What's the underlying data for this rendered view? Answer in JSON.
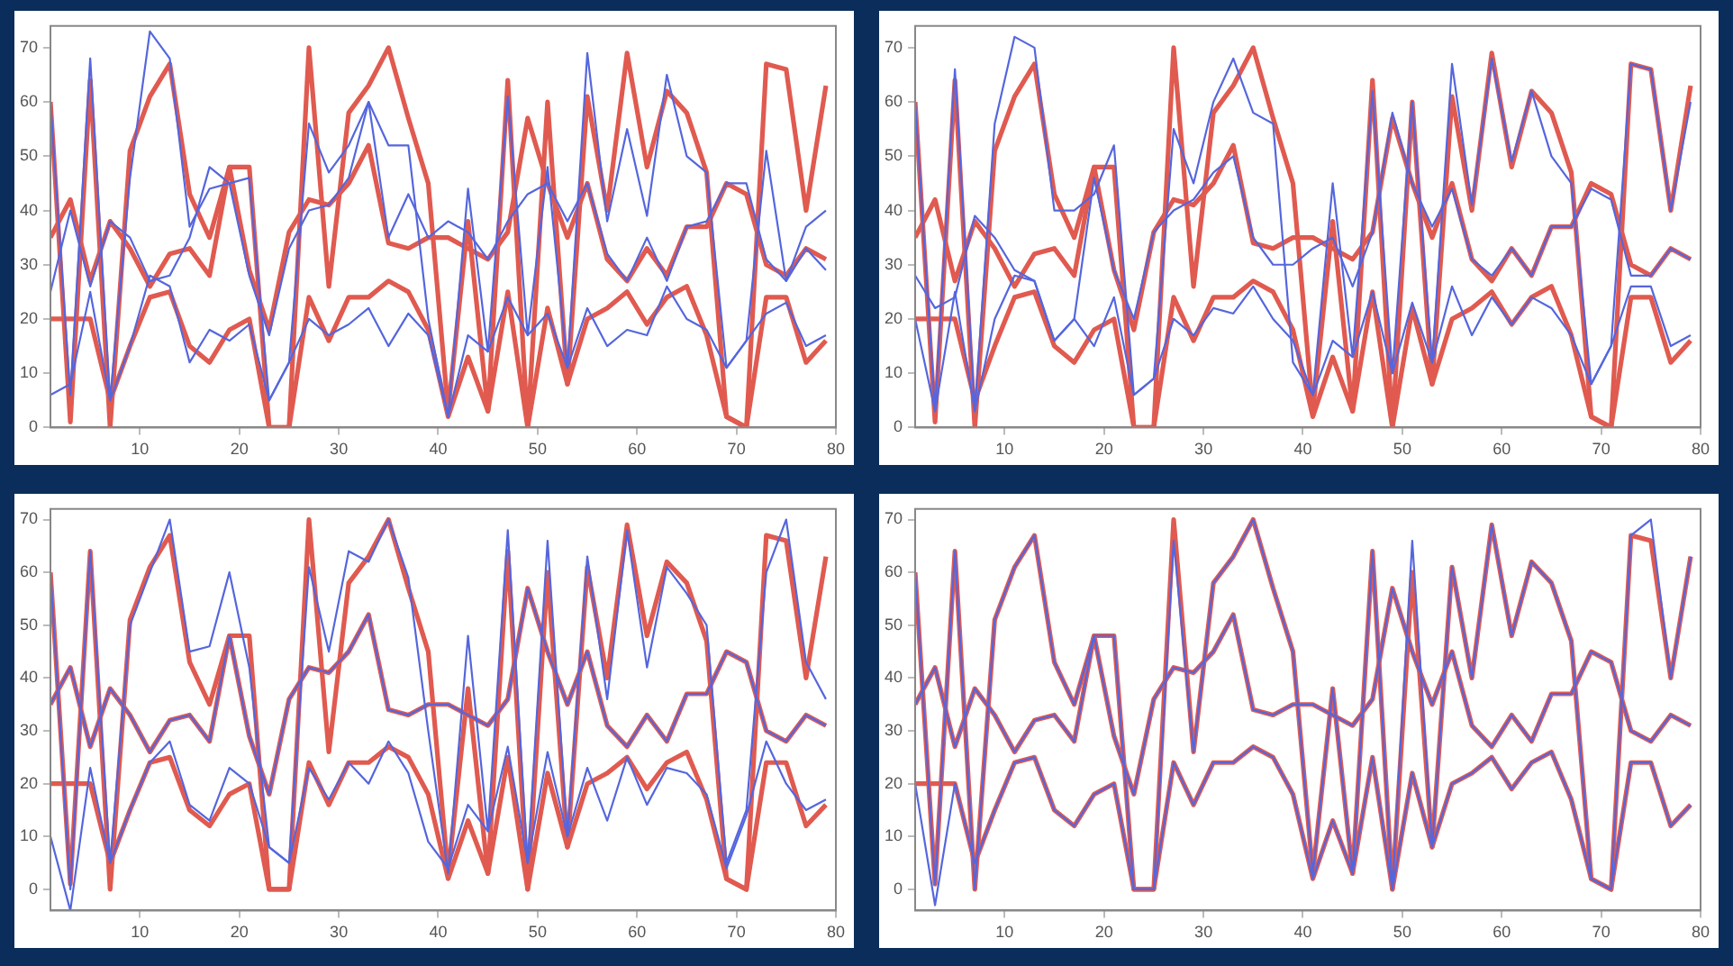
{
  "chart_data": [
    {
      "type": "line",
      "x": [
        1,
        3,
        5,
        7,
        9,
        11,
        13,
        15,
        17,
        19,
        21,
        23,
        25,
        27,
        29,
        31,
        33,
        35,
        37,
        39,
        41,
        43,
        45,
        47,
        49,
        51,
        53,
        55,
        57,
        59,
        61,
        63,
        65,
        67,
        69,
        71,
        73,
        75,
        77,
        79
      ],
      "xlim": [
        1,
        80
      ],
      "xticks": [
        10,
        20,
        30,
        40,
        50,
        60,
        70,
        80
      ],
      "ylim": [
        0,
        74
      ],
      "yticks": [
        0,
        10,
        20,
        30,
        40,
        50,
        60,
        70
      ],
      "grid": false,
      "legend": false,
      "series": [
        {
          "color": "#e05a50",
          "values": [
            60,
            1,
            64,
            0,
            51,
            61,
            67,
            43,
            35,
            48,
            48,
            0,
            0,
            70,
            26,
            58,
            63,
            70,
            57,
            45,
            3,
            38,
            3,
            64,
            0,
            60,
            8,
            61,
            40,
            69,
            48,
            62,
            58,
            47,
            2,
            0,
            67,
            66,
            40,
            63
          ]
        },
        {
          "color": "#e05a50",
          "values": [
            35,
            42,
            27,
            38,
            33,
            26,
            32,
            33,
            28,
            48,
            29,
            18,
            36,
            42,
            41,
            45,
            52,
            34,
            33,
            35,
            35,
            33,
            31,
            36,
            57,
            45,
            35,
            45,
            31,
            27,
            33,
            28,
            37,
            37,
            45,
            43,
            30,
            28,
            33,
            31
          ]
        },
        {
          "color": "#e05a50",
          "values": [
            20,
            20,
            20,
            5,
            15,
            24,
            25,
            15,
            12,
            18,
            20,
            0,
            0,
            24,
            16,
            24,
            24,
            27,
            25,
            18,
            2,
            13,
            3,
            25,
            0,
            22,
            8,
            20,
            22,
            25,
            19,
            24,
            26,
            17,
            2,
            0,
            24,
            24,
            12,
            16
          ]
        },
        {
          "color": "#5566dd",
          "values": [
            60,
            6,
            68,
            5,
            46,
            73,
            68,
            37,
            44,
            45,
            46,
            5,
            12,
            56,
            47,
            52,
            60,
            52,
            52,
            20,
            2,
            44,
            14,
            61,
            17,
            48,
            11,
            69,
            38,
            55,
            39,
            65,
            50,
            47,
            11,
            16,
            51,
            27,
            37,
            40
          ]
        },
        {
          "color": "#5566dd",
          "values": [
            25,
            40,
            26,
            38,
            35,
            27,
            28,
            35,
            48,
            45,
            28,
            17,
            33,
            40,
            41,
            46,
            60,
            35,
            43,
            35,
            38,
            36,
            31,
            38,
            43,
            45,
            38,
            45,
            32,
            27,
            35,
            27,
            37,
            38,
            45,
            45,
            31,
            27,
            33,
            29
          ]
        },
        {
          "color": "#5566dd",
          "values": [
            6,
            8,
            25,
            5,
            15,
            28,
            26,
            12,
            18,
            16,
            19,
            5,
            12,
            20,
            17,
            19,
            22,
            15,
            21,
            17,
            2,
            17,
            14,
            24,
            17,
            21,
            11,
            22,
            15,
            18,
            17,
            26,
            20,
            18,
            11,
            16,
            21,
            23,
            15,
            17
          ]
        }
      ]
    },
    {
      "type": "line",
      "x": [
        1,
        3,
        5,
        7,
        9,
        11,
        13,
        15,
        17,
        19,
        21,
        23,
        25,
        27,
        29,
        31,
        33,
        35,
        37,
        39,
        41,
        43,
        45,
        47,
        49,
        51,
        53,
        55,
        57,
        59,
        61,
        63,
        65,
        67,
        69,
        71,
        73,
        75,
        77,
        79
      ],
      "xlim": [
        1,
        80
      ],
      "xticks": [
        10,
        20,
        30,
        40,
        50,
        60,
        70,
        80
      ],
      "ylim": [
        0,
        74
      ],
      "yticks": [
        0,
        10,
        20,
        30,
        40,
        50,
        60,
        70
      ],
      "grid": false,
      "legend": false,
      "series": [
        {
          "color": "#e05a50",
          "values": [
            60,
            1,
            64,
            0,
            51,
            61,
            67,
            43,
            35,
            48,
            48,
            0,
            0,
            70,
            26,
            58,
            63,
            70,
            57,
            45,
            3,
            38,
            3,
            64,
            0,
            60,
            8,
            61,
            40,
            69,
            48,
            62,
            58,
            47,
            2,
            0,
            67,
            66,
            40,
            63
          ]
        },
        {
          "color": "#e05a50",
          "values": [
            35,
            42,
            27,
            38,
            33,
            26,
            32,
            33,
            28,
            48,
            29,
            18,
            36,
            42,
            41,
            45,
            52,
            34,
            33,
            35,
            35,
            33,
            31,
            36,
            57,
            45,
            35,
            45,
            31,
            27,
            33,
            28,
            37,
            37,
            45,
            43,
            30,
            28,
            33,
            31
          ]
        },
        {
          "color": "#e05a50",
          "values": [
            20,
            20,
            20,
            5,
            15,
            24,
            25,
            15,
            12,
            18,
            20,
            0,
            0,
            24,
            16,
            24,
            24,
            27,
            25,
            18,
            2,
            13,
            3,
            25,
            0,
            22,
            8,
            20,
            22,
            25,
            19,
            24,
            26,
            17,
            2,
            0,
            24,
            24,
            12,
            16
          ]
        },
        {
          "color": "#5566dd",
          "values": [
            60,
            3,
            66,
            3,
            56,
            72,
            70,
            40,
            40,
            43,
            52,
            6,
            9,
            55,
            45,
            60,
            68,
            58,
            56,
            12,
            6,
            45,
            13,
            62,
            10,
            60,
            12,
            67,
            41,
            68,
            49,
            62,
            50,
            45,
            8,
            15,
            67,
            66,
            40,
            60
          ]
        },
        {
          "color": "#5566dd",
          "values": [
            28,
            22,
            24,
            39,
            35,
            29,
            27,
            16,
            20,
            46,
            29,
            20,
            36,
            40,
            42,
            47,
            50,
            35,
            30,
            30,
            33,
            35,
            26,
            36,
            58,
            45,
            37,
            44,
            31,
            28,
            33,
            28,
            37,
            37,
            44,
            42,
            28,
            28,
            33,
            31
          ]
        },
        {
          "color": "#5566dd",
          "values": [
            20,
            3,
            25,
            3,
            20,
            28,
            27,
            16,
            20,
            15,
            24,
            6,
            9,
            20,
            17,
            22,
            21,
            26,
            20,
            16,
            6,
            16,
            13,
            25,
            10,
            23,
            12,
            26,
            17,
            24,
            19,
            24,
            22,
            17,
            8,
            15,
            26,
            26,
            15,
            17
          ]
        }
      ]
    },
    {
      "type": "line",
      "x": [
        1,
        3,
        5,
        7,
        9,
        11,
        13,
        15,
        17,
        19,
        21,
        23,
        25,
        27,
        29,
        31,
        33,
        35,
        37,
        39,
        41,
        43,
        45,
        47,
        49,
        51,
        53,
        55,
        57,
        59,
        61,
        63,
        65,
        67,
        69,
        71,
        73,
        75,
        77,
        79
      ],
      "xlim": [
        1,
        80
      ],
      "xticks": [
        10,
        20,
        30,
        40,
        50,
        60,
        70,
        80
      ],
      "ylim": [
        -4,
        72
      ],
      "yticks": [
        0,
        10,
        20,
        30,
        40,
        50,
        60,
        70
      ],
      "grid": false,
      "legend": false,
      "series": [
        {
          "color": "#e05a50",
          "values": [
            60,
            1,
            64,
            0,
            51,
            61,
            67,
            43,
            35,
            48,
            48,
            0,
            0,
            70,
            26,
            58,
            63,
            70,
            57,
            45,
            3,
            38,
            3,
            64,
            0,
            60,
            8,
            61,
            40,
            69,
            48,
            62,
            58,
            47,
            2,
            0,
            67,
            66,
            40,
            63
          ]
        },
        {
          "color": "#e05a50",
          "values": [
            35,
            42,
            27,
            38,
            33,
            26,
            32,
            33,
            28,
            48,
            29,
            18,
            36,
            42,
            41,
            45,
            52,
            34,
            33,
            35,
            35,
            33,
            31,
            36,
            57,
            45,
            35,
            45,
            31,
            27,
            33,
            28,
            37,
            37,
            45,
            43,
            30,
            28,
            33,
            31
          ]
        },
        {
          "color": "#e05a50",
          "values": [
            20,
            20,
            20,
            5,
            15,
            24,
            25,
            15,
            12,
            18,
            20,
            0,
            0,
            24,
            16,
            24,
            24,
            27,
            25,
            18,
            2,
            13,
            3,
            25,
            0,
            22,
            8,
            20,
            22,
            25,
            19,
            24,
            26,
            17,
            2,
            0,
            24,
            24,
            12,
            16
          ]
        },
        {
          "color": "#5566dd",
          "values": [
            60,
            0,
            64,
            5,
            50,
            60,
            70,
            45,
            46,
            60,
            42,
            8,
            5,
            61,
            45,
            64,
            62,
            70,
            59,
            30,
            3,
            48,
            11,
            68,
            5,
            66,
            10,
            63,
            36,
            68,
            42,
            61,
            56,
            50,
            5,
            15,
            60,
            70,
            43,
            36
          ]
        },
        {
          "color": "#5566dd",
          "values": [
            35,
            42,
            27,
            38,
            33,
            26,
            32,
            33,
            28,
            48,
            29,
            18,
            36,
            42,
            41,
            45,
            52,
            34,
            33,
            35,
            35,
            33,
            31,
            36,
            57,
            45,
            35,
            45,
            31,
            27,
            33,
            28,
            37,
            37,
            45,
            43,
            30,
            28,
            33,
            31
          ]
        },
        {
          "color": "#5566dd",
          "values": [
            10,
            -4,
            23,
            5,
            15,
            24,
            28,
            16,
            13,
            23,
            20,
            8,
            5,
            23,
            17,
            24,
            20,
            28,
            22,
            9,
            4,
            16,
            11,
            27,
            5,
            26,
            10,
            23,
            13,
            25,
            16,
            23,
            22,
            18,
            4,
            14,
            28,
            20,
            15,
            17
          ]
        }
      ]
    },
    {
      "type": "line",
      "x": [
        1,
        3,
        5,
        7,
        9,
        11,
        13,
        15,
        17,
        19,
        21,
        23,
        25,
        27,
        29,
        31,
        33,
        35,
        37,
        39,
        41,
        43,
        45,
        47,
        49,
        51,
        53,
        55,
        57,
        59,
        61,
        63,
        65,
        67,
        69,
        71,
        73,
        75,
        77,
        79
      ],
      "xlim": [
        1,
        80
      ],
      "xticks": [
        10,
        20,
        30,
        40,
        50,
        60,
        70,
        80
      ],
      "ylim": [
        -4,
        72
      ],
      "yticks": [
        0,
        10,
        20,
        30,
        40,
        50,
        60,
        70
      ],
      "grid": false,
      "legend": false,
      "series": [
        {
          "color": "#e05a50",
          "values": [
            60,
            1,
            64,
            0,
            51,
            61,
            67,
            43,
            35,
            48,
            48,
            0,
            0,
            70,
            26,
            58,
            63,
            70,
            57,
            45,
            3,
            38,
            3,
            64,
            0,
            60,
            8,
            61,
            40,
            69,
            48,
            62,
            58,
            47,
            2,
            0,
            67,
            66,
            40,
            63
          ]
        },
        {
          "color": "#e05a50",
          "values": [
            35,
            42,
            27,
            38,
            33,
            26,
            32,
            33,
            28,
            48,
            29,
            18,
            36,
            42,
            41,
            45,
            52,
            34,
            33,
            35,
            35,
            33,
            31,
            36,
            57,
            45,
            35,
            45,
            31,
            27,
            33,
            28,
            37,
            37,
            45,
            43,
            30,
            28,
            33,
            31
          ]
        },
        {
          "color": "#e05a50",
          "values": [
            20,
            20,
            20,
            5,
            15,
            24,
            25,
            15,
            12,
            18,
            20,
            0,
            0,
            24,
            16,
            24,
            24,
            27,
            25,
            18,
            2,
            13,
            3,
            25,
            0,
            22,
            8,
            20,
            22,
            25,
            19,
            24,
            26,
            17,
            2,
            0,
            24,
            24,
            12,
            16
          ]
        },
        {
          "color": "#5566dd",
          "values": [
            60,
            1,
            64,
            0,
            51,
            61,
            67,
            43,
            35,
            48,
            48,
            0,
            0,
            66,
            26,
            58,
            63,
            70,
            57,
            45,
            3,
            38,
            3,
            64,
            0,
            66,
            8,
            61,
            40,
            69,
            48,
            62,
            58,
            47,
            2,
            0,
            67,
            70,
            40,
            63
          ]
        },
        {
          "color": "#5566dd",
          "values": [
            35,
            42,
            27,
            38,
            33,
            26,
            32,
            33,
            28,
            48,
            29,
            18,
            36,
            42,
            41,
            45,
            52,
            34,
            33,
            35,
            35,
            33,
            31,
            36,
            57,
            45,
            35,
            45,
            31,
            27,
            33,
            28,
            37,
            37,
            45,
            43,
            30,
            28,
            33,
            31
          ]
        },
        {
          "color": "#5566dd",
          "values": [
            20,
            -3,
            20,
            5,
            15,
            24,
            25,
            15,
            12,
            18,
            20,
            0,
            0,
            24,
            16,
            24,
            24,
            27,
            25,
            18,
            2,
            13,
            3,
            25,
            0,
            22,
            8,
            20,
            22,
            25,
            19,
            24,
            26,
            17,
            2,
            0,
            24,
            24,
            12,
            16
          ]
        }
      ]
    }
  ]
}
